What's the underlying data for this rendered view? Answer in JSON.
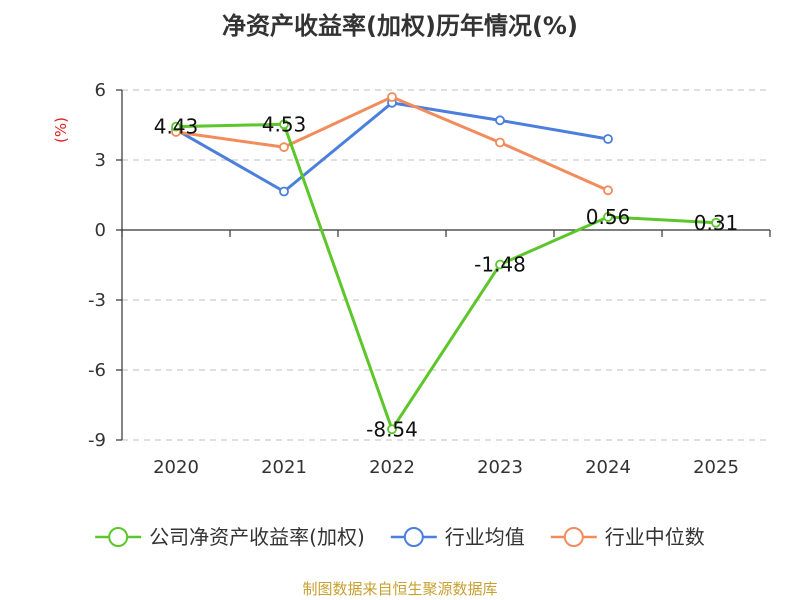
{
  "chart_data": {
    "type": "line",
    "title": "净资产收益率(加权)历年情况(%)",
    "ylabel": "(%)",
    "xlabel": "",
    "categories": [
      "2020",
      "2021",
      "2022",
      "2023",
      "2024",
      "2025"
    ],
    "ylim": [
      -9,
      6
    ],
    "yticks": [
      6,
      3,
      0,
      -3,
      -6,
      -9
    ],
    "ytick_labels": [
      "6",
      "3",
      "0",
      "-3",
      "-6",
      "-9"
    ],
    "grid": true,
    "legend_position": "bottom",
    "series": [
      {
        "name": "公司净资产收益率(加权)",
        "color": "#5cc62a",
        "values": [
          4.43,
          4.53,
          -8.54,
          -1.48,
          0.56,
          0.31
        ],
        "labels": [
          "4.43",
          "4.53",
          "-8.54",
          "-1.48",
          "0.56",
          "0.31"
        ]
      },
      {
        "name": "行业均值",
        "color": "#4a7fdc",
        "values": [
          4.3,
          1.65,
          5.45,
          4.7,
          3.9,
          null
        ]
      },
      {
        "name": "行业中位数",
        "color": "#f28c5c",
        "values": [
          4.2,
          3.55,
          5.7,
          3.75,
          1.7,
          null
        ]
      }
    ]
  },
  "source_text": "制图数据来自恒生聚源数据库",
  "colors": {
    "ylabel": "#e02020",
    "axis": "#333333",
    "grid": "#cccccc"
  }
}
